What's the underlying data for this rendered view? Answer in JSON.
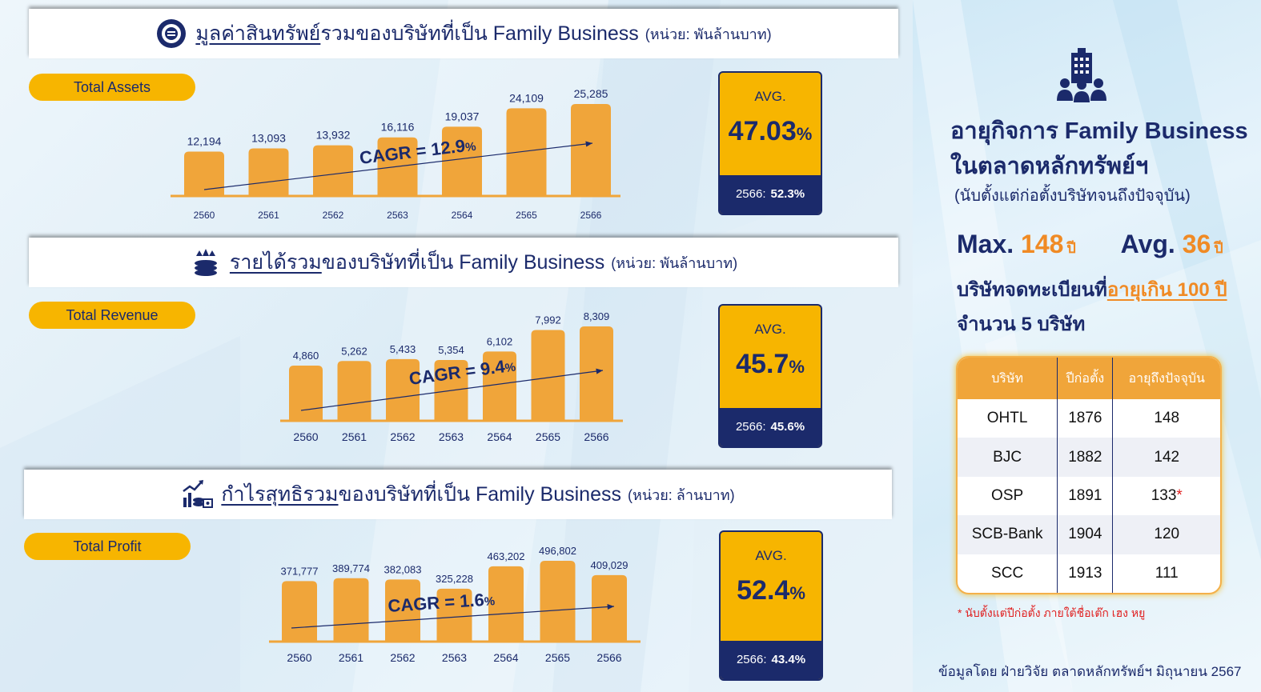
{
  "sections": [
    {
      "title_underlined": "มูลค่าสินทรัพย์",
      "title_rest": "รวมของบริษัทที่เป็น Family Business",
      "unit": "(หน่วย: พันล้านบาท)",
      "pill_label": "Total Assets",
      "cagr_label": "CAGR = 12.9",
      "cagr_pct": "%",
      "avg_label": "AVG.",
      "avg_value": "47.03",
      "avg_pct": "%",
      "latest_label": "2566:",
      "latest_value": "52.3%"
    },
    {
      "title_underlined": "รายได้รวม",
      "title_rest": "ของบริษัทที่เป็น Family Business",
      "unit": "(หน่วย: พันล้านบาท)",
      "pill_label": "Total Revenue",
      "cagr_label": "CAGR = 9.4",
      "cagr_pct": "%",
      "avg_label": "AVG.",
      "avg_value": "45.7",
      "avg_pct": "%",
      "latest_label": "2566:",
      "latest_value": "45.6%"
    },
    {
      "title_underlined": "กำไรสุทธิรวม",
      "title_rest": "ของบริษัทที่เป็น Family Business",
      "unit": "(หน่วย: ล้านบาท)",
      "pill_label": "Total Profit",
      "cagr_label": "CAGR = 1.6",
      "cagr_pct": "%",
      "avg_label": "AVG.",
      "avg_value": "52.4",
      "avg_pct": "%",
      "latest_label": "2566:",
      "latest_value": "43.4%"
    }
  ],
  "chart_data": [
    {
      "type": "bar",
      "title": "มูลค่าสินทรัพย์รวมของบริษัทที่เป็น Family Business",
      "categories": [
        "2560",
        "2561",
        "2562",
        "2563",
        "2564",
        "2565",
        "2566"
      ],
      "values": [
        12194,
        13093,
        13932,
        16116,
        19037,
        24109,
        25285
      ],
      "value_labels": [
        "12,194",
        "13,093",
        "13,932",
        "16,116",
        "19,037",
        "24,109",
        "25,285"
      ],
      "annotation": "CAGR = 12.9%",
      "color": "#f0a53a"
    },
    {
      "type": "bar",
      "title": "รายได้รวมของบริษัทที่เป็น Family Business",
      "categories": [
        "2560",
        "2561",
        "2562",
        "2563",
        "2564",
        "2565",
        "2566"
      ],
      "values": [
        4860,
        5262,
        5433,
        5354,
        6102,
        7992,
        8309
      ],
      "value_labels": [
        "4,860",
        "5,262",
        "5,433",
        "5,354",
        "6,102",
        "7,992",
        "8,309"
      ],
      "annotation": "CAGR = 9.4%",
      "color": "#f0a53a"
    },
    {
      "type": "bar",
      "title": "กำไรสุทธิรวมของบริษัทที่เป็น Family Business",
      "categories": [
        "2560",
        "2561",
        "2562",
        "2563",
        "2564",
        "2565",
        "2566"
      ],
      "values": [
        371777,
        389774,
        382083,
        325228,
        463202,
        496802,
        409029
      ],
      "value_labels": [
        "371,777",
        "389,774",
        "382,083",
        "325,228",
        "463,202",
        "496,802",
        "409,029"
      ],
      "annotation": "CAGR = 1.6%",
      "color": "#f0a53a"
    }
  ],
  "sidebar": {
    "title_line1": "อายุกิจการ Family Business",
    "title_line2": "ในตลาดหลักทรัพย์ฯ",
    "subtitle": "(นับตั้งแต่ก่อตั้งบริษัทจนถึงปัจจุบัน)",
    "max_label": "Max.",
    "max_value": "148",
    "avg_label": "Avg.",
    "avg_value": "36",
    "year_unit": "ปี",
    "listed_prefix": "บริษัทจดทะเบียนที่",
    "listed_highlight": "อายุเกิน 100 ปี",
    "count_text": "จำนวน 5 บริษัท",
    "table": {
      "headers": [
        "บริษัท",
        "ปีก่อตั้ง",
        "อายุถึงปัจจุบัน"
      ],
      "rows": [
        {
          "company": "OHTL",
          "founded": "1876",
          "age": "148",
          "mark": ""
        },
        {
          "company": "BJC",
          "founded": "1882",
          "age": "142",
          "mark": ""
        },
        {
          "company": "OSP",
          "founded": "1891",
          "age": "133",
          "mark": "*"
        },
        {
          "company": "SCB-Bank",
          "founded": "1904",
          "age": "120",
          "mark": ""
        },
        {
          "company": "SCC",
          "founded": "1913",
          "age": "111",
          "mark": ""
        }
      ]
    },
    "footnote": "* นับตั้งแต่ปีก่อตั้ง ภายใต้ชื่อเต๊ก เฮง หยู",
    "source": "ข้อมูลโดย ฝ่ายวิจัย ตลาดหลักทรัพย์ฯ มิถุนายน 2567"
  },
  "colors": {
    "navy": "#1b2a6b",
    "gold": "#f7b500",
    "bar": "#f0a53a",
    "accent": "#f08a24"
  },
  "icons": [
    "globe-coin-icon",
    "coins-up-icon",
    "growth-chart-coins-icon",
    "office-people-icon"
  ]
}
